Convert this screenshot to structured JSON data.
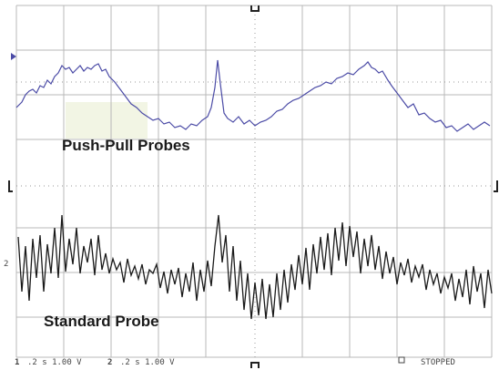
{
  "labels": {
    "top": "Push-Pull Probes",
    "bottom": "Standard Probe"
  },
  "channel_marker": "2",
  "status_bar": {
    "channels": [
      {
        "id": "1",
        "setting": ".2 s 1.00 V"
      },
      {
        "id": "2",
        "setting": ".2 s 1.00 V"
      }
    ],
    "state": "STOPPED"
  }
}
